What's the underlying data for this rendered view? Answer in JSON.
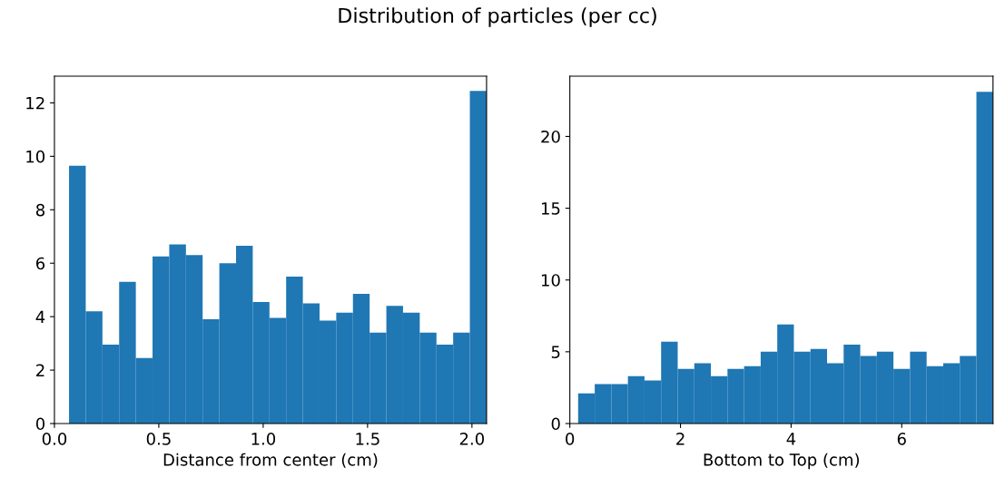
{
  "chart_data": [
    {
      "type": "histogram",
      "title": "Distribution of particles (per cc)",
      "xlabel": "Distance from center (cm)",
      "color": "#1f77b4",
      "bins": [
        0.07,
        0.15,
        0.23,
        0.31,
        0.39,
        0.47,
        0.55,
        0.63,
        0.71,
        0.79,
        0.87,
        0.95,
        1.03,
        1.11,
        1.19,
        1.27,
        1.35,
        1.43,
        1.51,
        1.59,
        1.67,
        1.75,
        1.83,
        1.91,
        1.99,
        2.07
      ],
      "values": [
        9.65,
        4.2,
        2.95,
        5.3,
        2.45,
        6.25,
        6.7,
        6.3,
        3.9,
        6.0,
        6.65,
        4.55,
        3.95,
        5.5,
        4.5,
        3.85,
        4.15,
        4.85,
        3.4,
        4.4,
        4.15,
        3.4,
        2.95,
        3.4,
        12.45
      ],
      "xlim": [
        0,
        2.07
      ],
      "xticks": [
        {
          "value": 0,
          "label": "0.0"
        },
        0.5,
        {
          "value": 1,
          "label": "1.0"
        },
        1.5,
        {
          "value": 2,
          "label": "2.0"
        }
      ],
      "ylim": [
        0,
        13
      ],
      "yticks": [
        0,
        2,
        4,
        6,
        8,
        10,
        12
      ],
      "grid": false
    },
    {
      "type": "histogram",
      "xlabel": "Bottom to Top (cm)",
      "color": "#1f77b4",
      "bins": [
        0.15,
        0.45,
        0.75,
        1.05,
        1.35,
        1.65,
        1.95,
        2.25,
        2.55,
        2.85,
        3.15,
        3.45,
        3.75,
        4.05,
        4.35,
        4.65,
        4.95,
        5.25,
        5.55,
        5.85,
        6.15,
        6.45,
        6.75,
        7.05,
        7.35,
        7.65
      ],
      "values": [
        2.1,
        2.75,
        2.75,
        3.3,
        3.0,
        5.7,
        3.8,
        4.2,
        3.3,
        3.8,
        4.0,
        5.0,
        6.9,
        5.0,
        5.2,
        4.2,
        5.5,
        4.7,
        5.0,
        3.8,
        5.0,
        4.0,
        4.2,
        4.7,
        23.1
      ],
      "xlim": [
        0,
        7.65
      ],
      "xticks": [
        0,
        2,
        4,
        6
      ],
      "ylim": [
        0,
        24.2
      ],
      "yticks": [
        0,
        5,
        10,
        15,
        20
      ],
      "grid": false
    }
  ]
}
